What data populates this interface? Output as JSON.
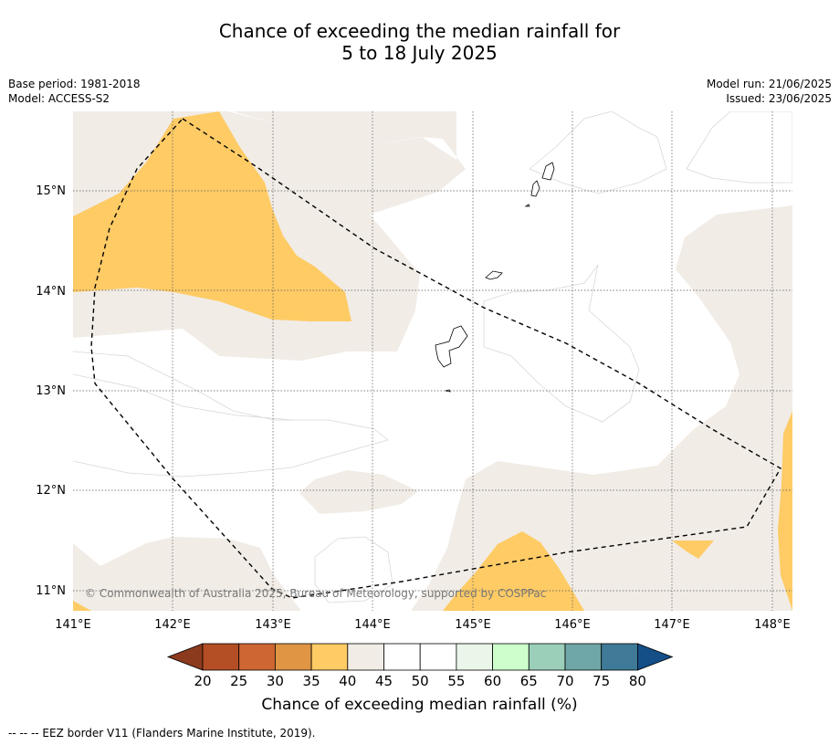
{
  "title_line1": "Chance of exceeding the median rainfall for",
  "title_line2": "5 to 18 July 2025",
  "meta_left": {
    "base_period": "Base period: 1981-2018",
    "model": "Model: ACCESS-S2"
  },
  "meta_right": {
    "model_run": "Model run: 21/06/2025",
    "issued": "Issued: 23/06/2025"
  },
  "lat_labels": [
    "15°N",
    "14°N",
    "13°N",
    "12°N",
    "11°N"
  ],
  "lon_labels": [
    "141°E",
    "142°E",
    "143°E",
    "144°E",
    "145°E",
    "146°E",
    "147°E",
    "148°E"
  ],
  "copyright": "© Commonwealth of Australia 2025, Bureau of Meteorology, supported by COSPPac",
  "colorbar": {
    "ticks": [
      "20",
      "25",
      "30",
      "35",
      "40",
      "45",
      "50",
      "55",
      "60",
      "65",
      "70",
      "75",
      "80"
    ],
    "colors": [
      "#b34e25",
      "#cd6633",
      "#e09545",
      "#fecb65",
      "#f1ece6",
      "#ffffff",
      "#ffffff",
      "#eaf6ea",
      "#cdfecc",
      "#9bcfba",
      "#6fa6a7",
      "#3f7a98"
    ],
    "under_color": "#8c3a1e",
    "over_color": "#144f88",
    "label": "Chance of exceeding median rainfall (%)"
  },
  "colors": {
    "orange": "#fecb65",
    "beige": "#f1ece6"
  },
  "footnote": "--  --  -- EEZ border V11 (Flanders Marine Institute, 2019)."
}
